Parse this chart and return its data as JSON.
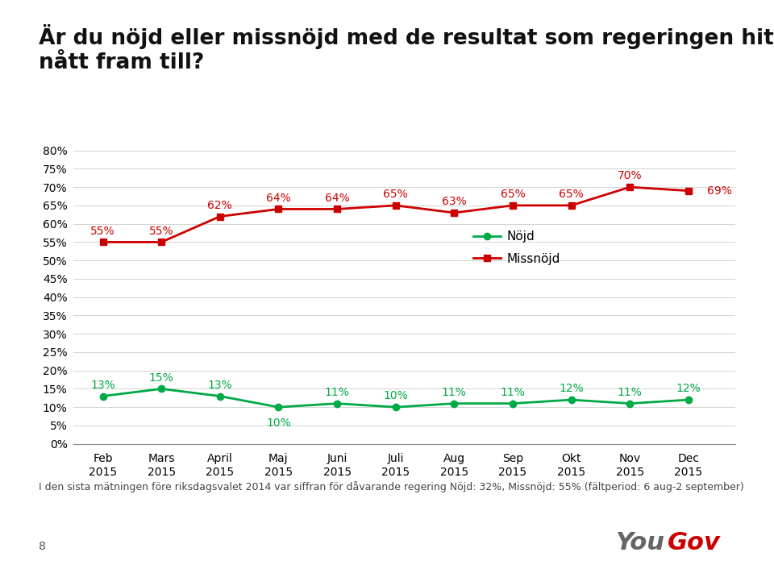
{
  "title_line1": "Är du nöjd eller missnöjd med de resultat som regeringen hittills",
  "title_line2": "nått fram till?",
  "categories": [
    "Feb\n2015",
    "Mars\n2015",
    "April\n2015",
    "Maj\n2015",
    "Juni\n2015",
    "Juli\n2015",
    "Aug\n2015",
    "Sep\n2015",
    "Okt\n2015",
    "Nov\n2015",
    "Dec\n2015"
  ],
  "nojd_values": [
    13,
    15,
    13,
    10,
    11,
    10,
    11,
    11,
    12,
    11,
    12
  ],
  "missnojd_values": [
    55,
    55,
    62,
    64,
    64,
    65,
    63,
    65,
    65,
    70,
    69
  ],
  "nojd_color": "#00aa44",
  "missnojd_color": "#cc0000",
  "nojd_label": "Nöjd",
  "missnojd_label": "Missnöjd",
  "yticks": [
    0,
    5,
    10,
    15,
    20,
    25,
    30,
    35,
    40,
    45,
    50,
    55,
    60,
    65,
    70,
    75,
    80
  ],
  "ylim": [
    0,
    83
  ],
  "footnote": "I den sista mätningen före riksdagsvalet 2014 var siffran för dåvarande regering Nöjd: 32%, Missnöjd: 55% (fältperiod: 6 aug-2 september)",
  "page_number": "8",
  "background_color": "#ffffff",
  "top_bar_color": "#cc0000",
  "title_fontsize": 19,
  "label_fontsize": 10,
  "tick_fontsize": 10,
  "footnote_fontsize": 9,
  "legend_fontsize": 11
}
